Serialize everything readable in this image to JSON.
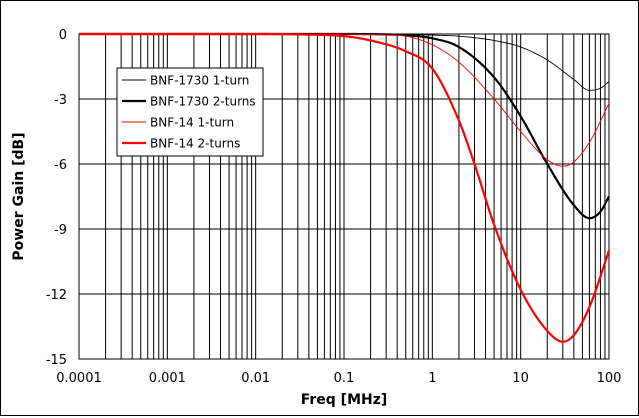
{
  "chart_data": {
    "type": "line",
    "title": "",
    "xlabel": "Freq [MHz]",
    "ylabel": "Power Gain [dB]",
    "xscale": "log",
    "xlim": [
      0.0001,
      100
    ],
    "ylim": [
      -15,
      0
    ],
    "grid": true,
    "legend_position": "top-left",
    "x_tick_labels": [
      "0.0001",
      "0.001",
      "0.01",
      "0.1",
      "1",
      "10",
      "100"
    ],
    "x_tick_values": [
      0.0001,
      0.001,
      0.01,
      0.1,
      1,
      10,
      100
    ],
    "y_tick_labels": [
      "0",
      "-3",
      "-6",
      "-9",
      "-12",
      "-15"
    ],
    "y_tick_values": [
      0,
      -3,
      -6,
      -9,
      -12,
      -15
    ],
    "series": [
      {
        "name": "BNF-1730 1-turn",
        "color": "#000000",
        "width": "thin",
        "x": [
          0.0001,
          0.01,
          0.1,
          0.3,
          1,
          2,
          5,
          10,
          20,
          40,
          60,
          80,
          100
        ],
        "y": [
          0,
          0,
          0,
          0,
          -0.05,
          -0.1,
          -0.3,
          -0.6,
          -1.2,
          -2.1,
          -2.6,
          -2.5,
          -2.2
        ]
      },
      {
        "name": "BNF-1730 2-turns",
        "color": "#000000",
        "width": "thick",
        "x": [
          0.0001,
          0.01,
          0.1,
          0.3,
          0.5,
          1,
          2,
          5,
          10,
          20,
          40,
          60,
          80,
          100
        ],
        "y": [
          0,
          0,
          0,
          -0.02,
          -0.05,
          -0.2,
          -0.6,
          -2.0,
          -3.8,
          -6.0,
          -7.9,
          -8.5,
          -8.2,
          -7.5
        ]
      },
      {
        "name": "BNF-14 1-turn",
        "color": "#ff0000",
        "width": "thin",
        "x": [
          0.0001,
          0.01,
          0.1,
          0.3,
          0.5,
          1,
          2,
          5,
          10,
          20,
          30,
          40,
          60,
          100
        ],
        "y": [
          0,
          0,
          0,
          -0.05,
          -0.1,
          -0.5,
          -1.3,
          -3.0,
          -4.5,
          -5.8,
          -6.1,
          -5.9,
          -5.0,
          -3.2
        ]
      },
      {
        "name": "BNF-14 2-turns",
        "color": "#ff0000",
        "width": "thick",
        "x": [
          0.0001,
          0.01,
          0.03,
          0.1,
          0.2,
          0.5,
          1,
          2,
          3,
          5,
          10,
          20,
          30,
          40,
          60,
          100
        ],
        "y": [
          0,
          0,
          -0.02,
          -0.1,
          -0.3,
          -0.8,
          -1.6,
          -4.0,
          -6.0,
          -8.8,
          -11.8,
          -13.7,
          -14.2,
          -13.9,
          -12.6,
          -10.0
        ]
      }
    ]
  }
}
